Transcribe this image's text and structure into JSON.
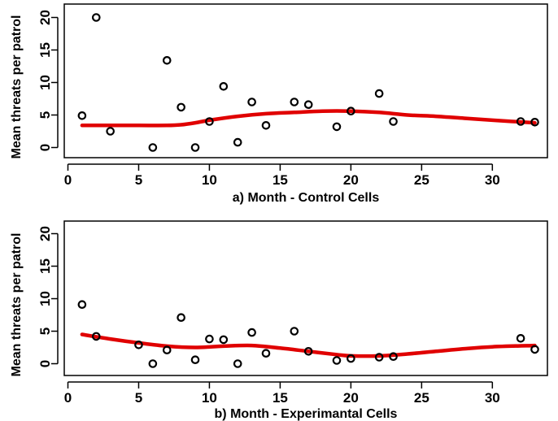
{
  "chart_data": [
    {
      "type": "scatter",
      "title": "",
      "xlabel": "a) Month - Control Cells",
      "ylabel": "Mean threats per patrol",
      "xlim": [
        0,
        33
      ],
      "ylim": [
        0,
        20
      ],
      "xticks": [
        0,
        5,
        10,
        15,
        20,
        25,
        30
      ],
      "yticks": [
        0,
        5,
        10,
        15,
        20
      ],
      "grid": false,
      "series": [
        {
          "kind": "points",
          "x": [
            1,
            2,
            3,
            6,
            7,
            8,
            9,
            10,
            11,
            12,
            13,
            14,
            16,
            17,
            19,
            20,
            22,
            23,
            32,
            33
          ],
          "y": [
            4.9,
            20.0,
            2.5,
            0.0,
            13.4,
            6.2,
            0.0,
            4.0,
            9.4,
            0.8,
            7.0,
            3.4,
            7.0,
            6.6,
            3.2,
            5.6,
            8.3,
            4.0,
            4.0,
            3.9
          ]
        },
        {
          "kind": "smooth",
          "color": "#e00000",
          "x": [
            1,
            3,
            5,
            7,
            8,
            9,
            10,
            12,
            14,
            16,
            18,
            20,
            22,
            24,
            26,
            28,
            30,
            33
          ],
          "y": [
            3.4,
            3.4,
            3.4,
            3.4,
            3.5,
            3.8,
            4.2,
            4.8,
            5.2,
            5.4,
            5.6,
            5.6,
            5.4,
            5.0,
            4.8,
            4.5,
            4.2,
            3.8
          ]
        }
      ]
    },
    {
      "type": "scatter",
      "title": "",
      "xlabel": "b) Month - Experimantal Cells",
      "ylabel": "Mean threats per patrol",
      "xlim": [
        0,
        33
      ],
      "ylim": [
        0,
        20
      ],
      "xticks": [
        0,
        5,
        10,
        15,
        20,
        25,
        30
      ],
      "yticks": [
        0,
        5,
        10,
        15,
        20
      ],
      "grid": false,
      "series": [
        {
          "kind": "points",
          "x": [
            1,
            2,
            5,
            6,
            7,
            8,
            9,
            10,
            11,
            12,
            13,
            14,
            16,
            17,
            19,
            20,
            22,
            23,
            32,
            33
          ],
          "y": [
            9.1,
            4.2,
            2.9,
            0.0,
            2.1,
            7.1,
            0.6,
            3.8,
            3.7,
            0.0,
            4.8,
            1.6,
            5.0,
            1.9,
            0.5,
            0.8,
            1.0,
            1.1,
            3.9,
            2.2
          ]
        },
        {
          "kind": "smooth",
          "color": "#e00000",
          "x": [
            1,
            3,
            5,
            7,
            9,
            11,
            13,
            15,
            17,
            19,
            20,
            22,
            24,
            26,
            28,
            30,
            33
          ],
          "y": [
            4.5,
            3.8,
            3.2,
            2.7,
            2.5,
            2.7,
            2.8,
            2.4,
            1.9,
            1.4,
            1.2,
            1.2,
            1.5,
            1.9,
            2.3,
            2.6,
            2.8
          ]
        }
      ]
    }
  ]
}
